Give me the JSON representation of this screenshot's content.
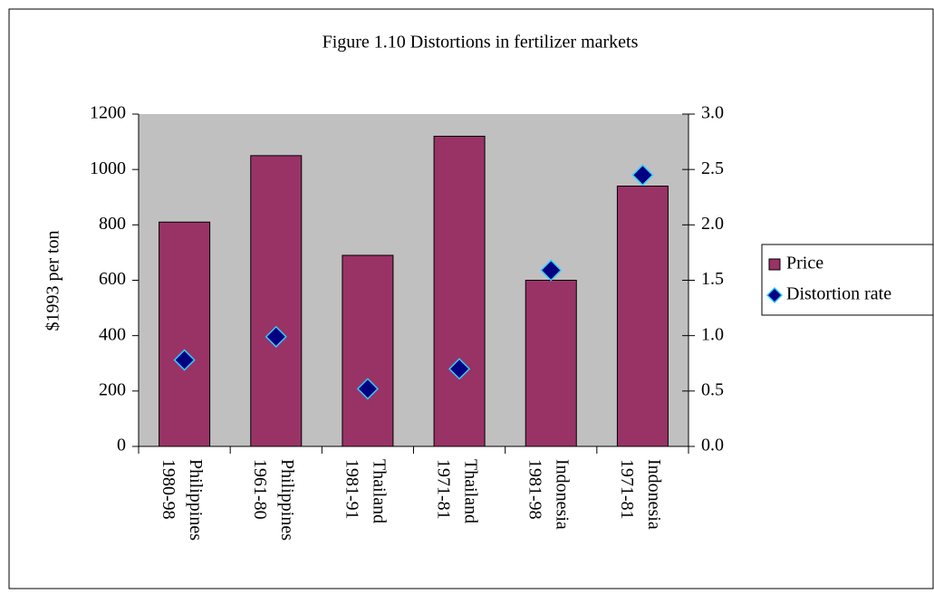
{
  "chart_data": {
    "type": "bar",
    "title": "Figure 1.10 Distortions in fertilizer markets",
    "y_label": "$1993 per ton",
    "categories": [
      [
        "Philippines",
        "1980-98"
      ],
      [
        "Philippines",
        "1961-80"
      ],
      [
        "Thailand",
        "1981-91"
      ],
      [
        "Thailand",
        "1971-81"
      ],
      [
        "Indonesia",
        "1981-98"
      ],
      [
        "Indonesia",
        "1971-81"
      ]
    ],
    "series": [
      {
        "name": "Price",
        "color": "#993366",
        "type": "bar",
        "values": [
          810,
          1050,
          690,
          1120,
          600,
          940
        ]
      },
      {
        "name": "Distortion rate",
        "color": "#000080",
        "type": "scatter",
        "axis": "y2",
        "values": [
          0.78,
          0.99,
          0.52,
          0.7,
          1.59,
          2.45
        ]
      }
    ],
    "ylim": [
      0,
      1200
    ],
    "yticks": [
      0,
      200,
      400,
      600,
      800,
      1000,
      1200
    ],
    "y2lim": [
      0,
      3.0
    ],
    "y2ticks": [
      {
        "value": 0,
        "label": "0.0"
      },
      {
        "value": 0.5,
        "label": "0.5"
      },
      {
        "value": 1.0,
        "label": "1.0"
      },
      {
        "value": 1.5,
        "label": "1.5"
      },
      {
        "value": 2.0,
        "label": "2.0"
      },
      {
        "value": 2.5,
        "label": "2.5"
      },
      {
        "value": 3.0,
        "label": "3.0"
      }
    ],
    "plot_background": "#c0c0c0",
    "legend": "right"
  }
}
